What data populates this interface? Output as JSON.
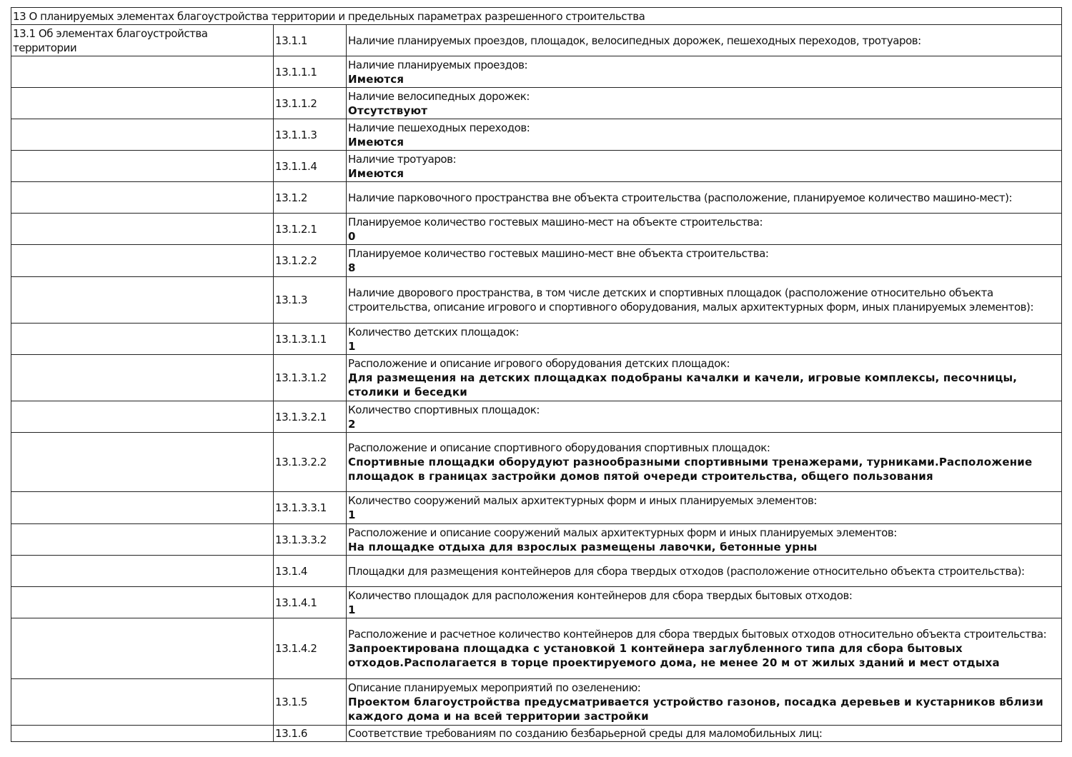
{
  "section_title": "13 О планируемых элементах благоустройства территории и предельных параметрах разрешенного строительства",
  "subsection_title": "13.1 Об элементах благоустройства территории",
  "rows": [
    {
      "code": "13.1.1",
      "label": "Наличие планируемых проездов, площадок, велосипедных дорожек, пешеходных переходов, тротуаров:",
      "value": ""
    },
    {
      "code": "13.1.1.1",
      "label": "Наличие планируемых проездов:",
      "value": "Имеются"
    },
    {
      "code": "13.1.1.2",
      "label": "Наличие велосипедных дорожек:",
      "value": "Отсутствуют"
    },
    {
      "code": "13.1.1.3",
      "label": "Наличие пешеходных переходов:",
      "value": "Имеются"
    },
    {
      "code": "13.1.1.4",
      "label": "Наличие тротуаров:",
      "value": "Имеются"
    },
    {
      "code": "13.1.2",
      "label": "Наличие парковочного пространства вне объекта строительства (расположение, планируемое количество машино-мест):",
      "value": ""
    },
    {
      "code": "13.1.2.1",
      "label": "Планируемое количество гостевых машино-мест на объекте строительства:",
      "value": "0"
    },
    {
      "code": "13.1.2.2",
      "label": "Планируемое количество гостевых машино-мест вне объекта строительства:",
      "value": "8"
    },
    {
      "code": "13.1.3",
      "label": "Наличие дворового пространства, в том числе детских и спортивных площадок (расположение относительно объекта строительства, описание игрового и спортивного оборудования, малых архитектурных форм, иных планируемых элементов):",
      "value": ""
    },
    {
      "code": "13.1.3.1.1",
      "label": "Количество детских площадок:",
      "value": "1"
    },
    {
      "code": "13.1.3.1.2",
      "label": "Расположение и описание игрового оборудования детских площадок:",
      "value": "Для размещения на детских площадках подобраны качалки и качели, игровые комплексы, песочницы, столики и беседки"
    },
    {
      "code": "13.1.3.2.1",
      "label": "Количество спортивных площадок:",
      "value": "2"
    },
    {
      "code": "13.1.3.2.2",
      "label": "Расположение и описание спортивного оборудования спортивных площадок:",
      "value": "Спортивные площадки оборудуют разнообразными спортивными тренажерами, турниками.Расположение площадок в границах застройки домов пятой очереди строительства, общего пользования"
    },
    {
      "code": "13.1.3.3.1",
      "label": "Количество сооружений малых архитектурных форм и иных планируемых элементов:",
      "value": "1"
    },
    {
      "code": "13.1.3.3.2",
      "label": "Расположение и описание сооружений малых архитектурных форм и иных планируемых элементов:",
      "value": "На площадке отдыха для взрослых размещены лавочки, бетонные урны"
    },
    {
      "code": "13.1.4",
      "label": "Площадки для размещения контейнеров для сбора твердых отходов (расположение относительно объекта строительства):",
      "value": ""
    },
    {
      "code": "13.1.4.1",
      "label": "Количество площадок для расположения контейнеров для сбора твердых бытовых отходов:",
      "value": "1"
    },
    {
      "code": "13.1.4.2",
      "label": "Расположение и расчетное количество контейнеров для сбора твердых бытовых отходов относительно объекта строительства:",
      "value": "Запроектирована площадка с установкой 1 контейнера заглубленного типа для сбора бытовых отходов.Располагается в торце проектируемого дома, не менее 20 м от жилых зданий и мест отдыха"
    },
    {
      "code": "13.1.5",
      "label": "Описание планируемых мероприятий по озеленению:",
      "value": "Проектом благоустройства предусматривается устройство газонов, посадка деревьев и кустарников вблизи каждого дома и на всей территории застройки"
    },
    {
      "code": "13.1.6",
      "label": "Соответствие требованиям по созданию безбарьерной среды для маломобильных лиц:",
      "value": ""
    }
  ]
}
